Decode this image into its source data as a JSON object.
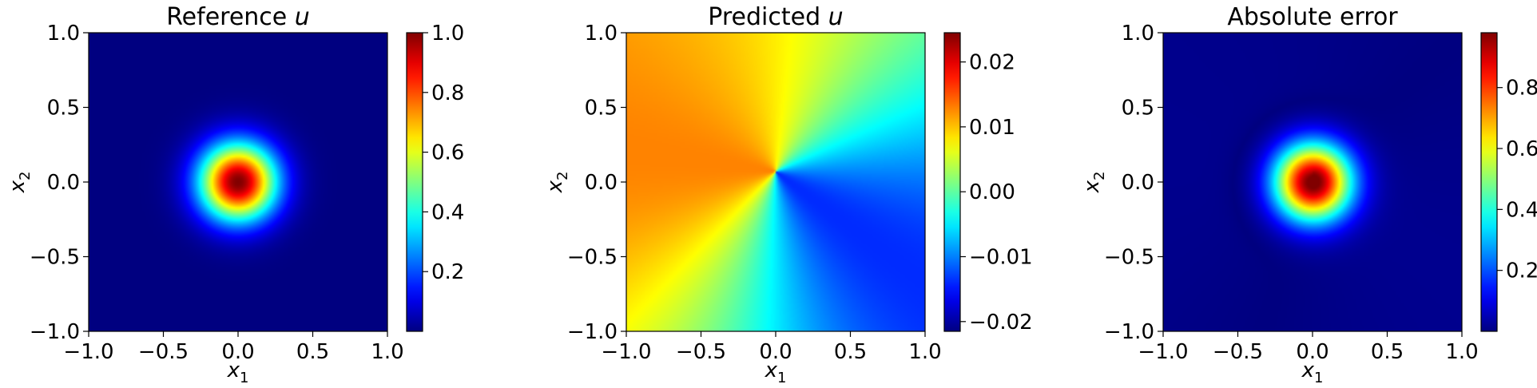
{
  "chart_data": [
    {
      "type": "heatmap",
      "title_text": "Reference ",
      "title_var": "u",
      "xlabel_var": "x",
      "xlabel_sub": "1",
      "ylabel_var": "x",
      "ylabel_sub": "2",
      "xlim": [
        -1.0,
        1.0
      ],
      "ylim": [
        -1.0,
        1.0
      ],
      "xticks": [
        "−1.0",
        "−0.5",
        "0.0",
        "0.5",
        "1.0"
      ],
      "yticks": [
        "−1.0",
        "−0.5",
        "0.0",
        "0.5",
        "1.0"
      ],
      "field": "gaussian bump centered at (0, 0), max 1.0",
      "colormap": "jet",
      "colorbar": {
        "vmin": 0.0,
        "vmax": 1.0,
        "ticks": [
          0.2,
          0.4,
          0.6,
          0.8,
          1.0
        ],
        "tick_labels": [
          "0.2",
          "0.4",
          "0.6",
          "0.8",
          "1.0"
        ]
      }
    },
    {
      "type": "heatmap",
      "title_text": "Predicted ",
      "title_var": "u",
      "xlabel_var": "x",
      "xlabel_sub": "1",
      "ylabel_var": "x",
      "ylabel_sub": "2",
      "xlim": [
        -1.0,
        1.0
      ],
      "ylim": [
        -1.0,
        1.0
      ],
      "xticks": [
        "−1.0",
        "−0.5",
        "0.0",
        "0.5",
        "1.0"
      ],
      "yticks": [
        "−1.0",
        "−0.5",
        "0.0",
        "0.5",
        "1.0"
      ],
      "field": "angular field around (0, 0.07), max at top-left, min at right",
      "colormap": "jet",
      "colorbar": {
        "vmin": -0.0215,
        "vmax": 0.0245,
        "ticks": [
          -0.02,
          -0.01,
          0.0,
          0.01,
          0.02
        ],
        "tick_labels": [
          "−0.02",
          "−0.01",
          "0.00",
          "0.01",
          "0.02"
        ]
      }
    },
    {
      "type": "heatmap",
      "title_text": "Absolute error",
      "title_var": "",
      "xlabel_var": "x",
      "xlabel_sub": "1",
      "ylabel_var": "x",
      "ylabel_sub": "2",
      "xlim": [
        -1.0,
        1.0
      ],
      "ylim": [
        -1.0,
        1.0
      ],
      "xticks": [
        "−1.0",
        "−0.5",
        "0.0",
        "0.5",
        "1.0"
      ],
      "yticks": [
        "−1.0",
        "−0.5",
        "0.0",
        "0.5",
        "1.0"
      ],
      "field": "absolute difference of reference and predicted",
      "colormap": "jet",
      "colorbar": {
        "vmin": 0.0,
        "vmax": 0.98,
        "ticks": [
          0.2,
          0.4,
          0.6,
          0.8
        ],
        "tick_labels": [
          "0.2",
          "0.4",
          "0.6",
          "0.8"
        ]
      }
    }
  ]
}
